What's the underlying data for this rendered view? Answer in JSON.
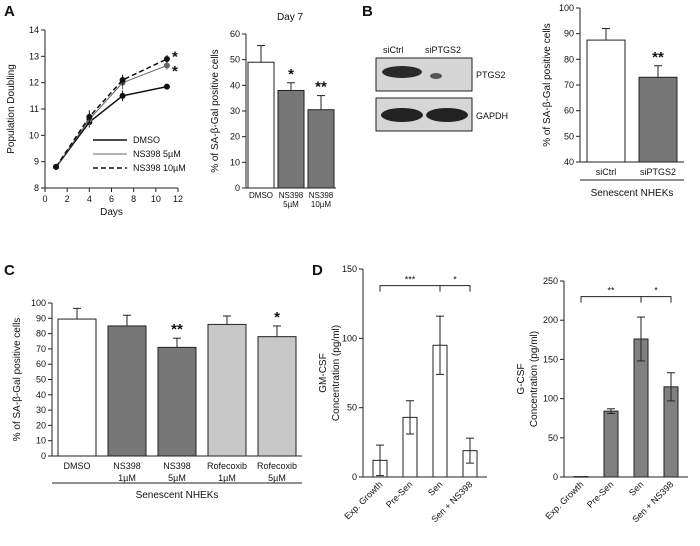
{
  "panel_labels": {
    "A": "A",
    "B": "B",
    "C": "C",
    "D": "D"
  },
  "chart_data": [
    {
      "id": "A1",
      "type": "line",
      "xlabel": "Days",
      "ylabel": "Population Doubling",
      "xlim": [
        0,
        12
      ],
      "ylim": [
        8,
        14
      ],
      "xticks": [
        "0",
        "2",
        "4",
        "6",
        "8",
        "10",
        "12"
      ],
      "yticks": [
        "8",
        "9",
        "10",
        "11",
        "12",
        "13",
        "14"
      ],
      "grid": false,
      "legend_position": "bottom-right",
      "series": [
        {
          "name": "DMSO",
          "style": "solid",
          "color": "#111111",
          "points": [
            [
              1,
              8.8
            ],
            [
              4,
              10.5
            ],
            [
              7,
              11.5
            ],
            [
              11,
              11.85
            ]
          ],
          "errors": [
            0.1,
            0.2,
            0.2,
            0.1
          ]
        },
        {
          "name": "NS398 5µM",
          "style": "solid-thin",
          "color": "#666666",
          "points": [
            [
              1,
              8.8
            ],
            [
              4,
              10.6
            ],
            [
              7,
              12.0
            ],
            [
              11,
              12.65
            ]
          ],
          "errors": [
            0.1,
            0.25,
            0.25,
            0.15
          ]
        },
        {
          "name": "NS398 10µM",
          "style": "dashed",
          "color": "#111111",
          "points": [
            [
              1,
              8.8
            ],
            [
              4,
              10.7
            ],
            [
              7,
              12.1
            ],
            [
              11,
              12.9
            ]
          ],
          "errors": [
            0.1,
            0.25,
            0.2,
            0.15
          ]
        }
      ],
      "annotations": [
        "*",
        "*"
      ]
    },
    {
      "id": "A2",
      "type": "bar",
      "title": "Day 7",
      "ylabel": "% of SA-β-Gal positive cells",
      "ylim": [
        0,
        60
      ],
      "yticks": [
        "0",
        "10",
        "20",
        "30",
        "40",
        "50",
        "60"
      ],
      "categories": [
        [
          "DMSO"
        ],
        [
          "NS398",
          "5µM"
        ],
        [
          "NS398",
          "10µM"
        ]
      ],
      "values": [
        49,
        38,
        30.5
      ],
      "errors": [
        6.5,
        3,
        5.5
      ],
      "colors": [
        "#ffffff",
        "#777777",
        "#777777"
      ],
      "stars": [
        "",
        "*",
        "**"
      ]
    },
    {
      "id": "B",
      "type": "bar",
      "ylabel": "% of SA-β-Gal positive cells",
      "ylim": [
        40,
        100
      ],
      "yticks": [
        "40",
        "50",
        "60",
        "70",
        "80",
        "90",
        "100"
      ],
      "categories": [
        [
          "siCtrl"
        ],
        [
          "siPTGS2"
        ]
      ],
      "values": [
        87.5,
        73
      ],
      "errors": [
        4.5,
        4.5
      ],
      "colors": [
        "#ffffff",
        "#777777"
      ],
      "stars": [
        "",
        "**"
      ],
      "group_label": "Senescent NHEKs",
      "blot": {
        "lanes": [
          "siCtrl",
          "siPTGS2"
        ],
        "bands": [
          "PTGS2",
          "GAPDH"
        ]
      }
    },
    {
      "id": "C",
      "type": "bar",
      "ylabel": "% of SA-β-Gal positive cells",
      "ylim": [
        0,
        100
      ],
      "yticks": [
        "0",
        "10",
        "20",
        "30",
        "40",
        "50",
        "60",
        "70",
        "80",
        "90",
        "100"
      ],
      "categories": [
        [
          "DMSO"
        ],
        [
          "NS398",
          "1µM"
        ],
        [
          "NS398",
          "5µM"
        ],
        [
          "Rofecoxib",
          "1µM"
        ],
        [
          "Rofecoxib",
          "5µM"
        ]
      ],
      "values": [
        89.5,
        85,
        71,
        86,
        78
      ],
      "errors": [
        7,
        7,
        6,
        5.5,
        7
      ],
      "colors": [
        "#ffffff",
        "#777777",
        "#777777",
        "#c8c8c8",
        "#c8c8c8"
      ],
      "stars": [
        "",
        "",
        "**",
        "",
        "*"
      ],
      "group_label": "Senescent NHEKs"
    },
    {
      "id": "D1",
      "type": "bar",
      "ylabel": [
        "GM-CSF",
        "Concentration (pg/ml)"
      ],
      "ylim": [
        0,
        150
      ],
      "yticks": [
        "0",
        "50",
        "100",
        "150"
      ],
      "categories": [
        "Exp. Growth",
        "Pre-Sen",
        "Sen",
        "Sen + NS398"
      ],
      "values": [
        12,
        43,
        95,
        19
      ],
      "errors": [
        11,
        12,
        21,
        9
      ],
      "colors": [
        "#ffffff",
        "#ffffff",
        "#ffffff",
        "#ffffff"
      ],
      "brackets": [
        {
          "from": 0,
          "to": 2,
          "label": "***"
        },
        {
          "from": 2,
          "to": 3,
          "label": "*"
        }
      ]
    },
    {
      "id": "D2",
      "type": "bar",
      "ylabel": [
        "G-CSF",
        "Concentration (pg/ml)"
      ],
      "ylim": [
        0,
        250
      ],
      "yticks": [
        "0",
        "50",
        "100",
        "150",
        "200",
        "250"
      ],
      "categories": [
        "Exp. Growth",
        "Pre-Sen",
        "Sen",
        "Sen + NS398"
      ],
      "values": [
        0.5,
        84,
        176,
        115
      ],
      "errors": [
        0,
        3,
        28,
        18
      ],
      "colors": [
        "#808080",
        "#808080",
        "#808080",
        "#808080"
      ],
      "brackets": [
        {
          "from": 0,
          "to": 2,
          "label": "**"
        },
        {
          "from": 2,
          "to": 3,
          "label": "*"
        }
      ]
    }
  ]
}
